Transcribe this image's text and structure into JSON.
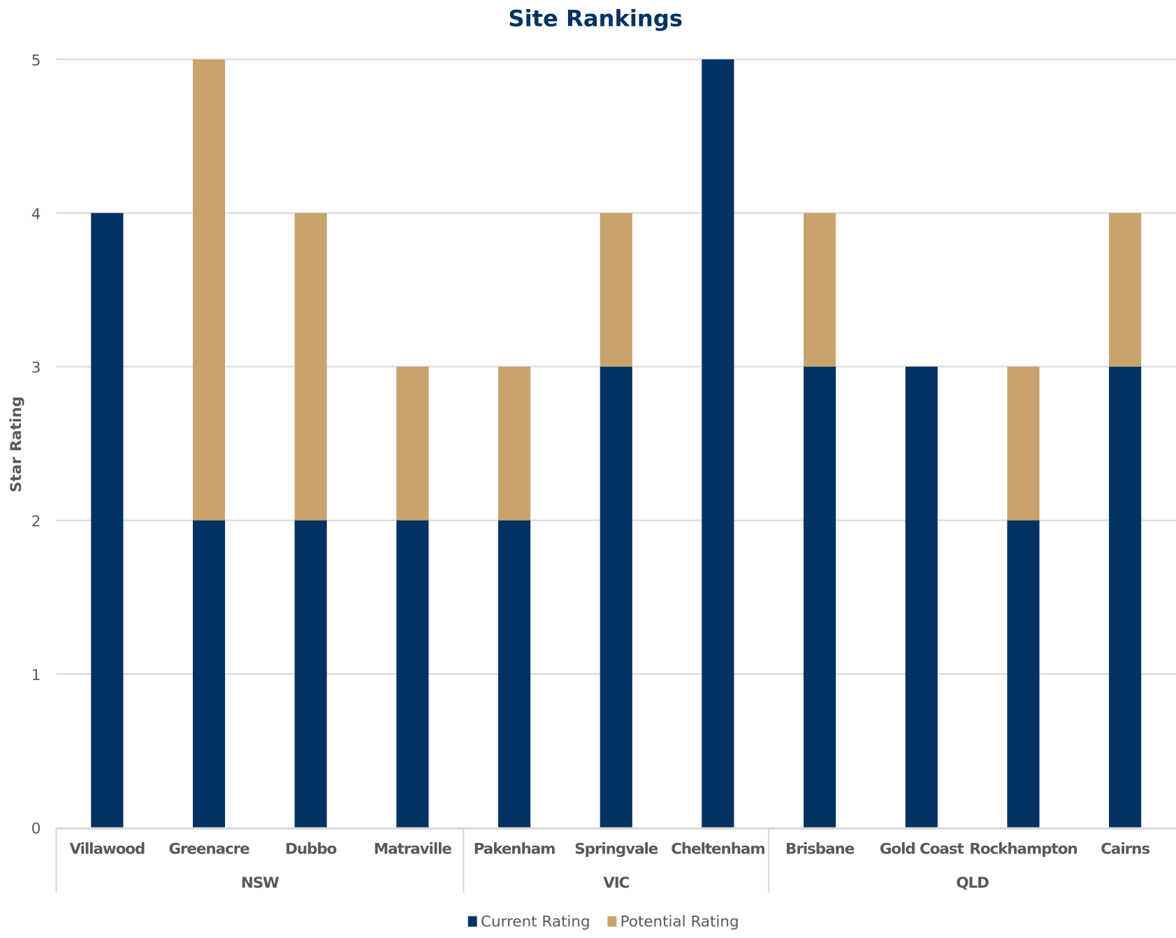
{
  "chart_data": {
    "type": "bar",
    "stacked": true,
    "title": "Site Rankings",
    "xlabel": "",
    "ylabel": "Star Rating",
    "ylim": [
      0,
      5
    ],
    "yticks": [
      "0",
      "1",
      "2",
      "3",
      "4",
      "5"
    ],
    "grid": true,
    "legend_position": "bottom",
    "categories": [
      "Villawood",
      "Greenacre",
      "Dubbo",
      "Matraville",
      "Pakenham",
      "Springvale",
      "Cheltenham",
      "Brisbane",
      "Gold Coast",
      "Rockhampton",
      "Cairns"
    ],
    "groups": [
      {
        "name": "NSW",
        "count": 4
      },
      {
        "name": "VIC",
        "count": 3
      },
      {
        "name": "QLD",
        "count": 4
      }
    ],
    "series": [
      {
        "name": "Current Rating",
        "color": "#003262",
        "values": [
          4,
          2,
          2,
          2,
          2,
          3,
          5,
          3,
          3,
          2,
          3
        ]
      },
      {
        "name": "Potential Rating",
        "color": "#C8A46C",
        "values": [
          0,
          3,
          2,
          1,
          1,
          1,
          0,
          1,
          0,
          1,
          1
        ]
      }
    ]
  }
}
